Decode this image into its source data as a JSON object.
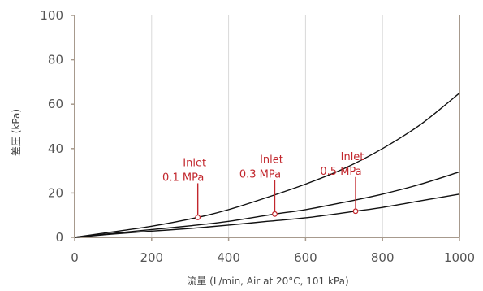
{
  "chart_data": {
    "type": "line",
    "title": "",
    "xlabel": "流量 (L/min, Air at 20°C, 101 kPa)",
    "ylabel": "差圧 (kPa)",
    "xlim": [
      0,
      1000
    ],
    "ylim": [
      0,
      100
    ],
    "x_ticks": [
      "0",
      "200",
      "400",
      "600",
      "800",
      "1000"
    ],
    "y_ticks": [
      "0",
      "20",
      "40",
      "60",
      "80",
      "100"
    ],
    "grid": "vertical",
    "series": [
      {
        "x": [
          0,
          100,
          200,
          320,
          400,
          500,
          600,
          700,
          800,
          900,
          1000
        ],
        "y": [
          0,
          2.5,
          5.0,
          9.0,
          12.5,
          18.0,
          24.0,
          31.0,
          40.0,
          51.0,
          65.0
        ]
      },
      {
        "x": [
          0,
          100,
          200,
          300,
          400,
          520,
          600,
          700,
          800,
          900,
          1000
        ],
        "y": [
          0,
          1.8,
          3.5,
          5.2,
          7.2,
          10.5,
          12.5,
          15.8,
          19.5,
          24.0,
          29.5
        ]
      },
      {
        "x": [
          0,
          100,
          200,
          300,
          400,
          500,
          600,
          730,
          800,
          900,
          1000
        ],
        "y": [
          0,
          1.5,
          2.8,
          4.0,
          5.5,
          7.2,
          8.8,
          11.8,
          13.5,
          16.5,
          19.5
        ]
      }
    ],
    "annotations": [
      {
        "lines": [
          "Inlet",
          "0.1 MPa"
        ],
        "x": 320,
        "y": 9.0
      },
      {
        "lines": [
          "Inlet",
          "0.3 MPa"
        ],
        "x": 520,
        "y": 10.5
      },
      {
        "lines": [
          "Inlet",
          "0.5 MPa"
        ],
        "x": 730,
        "y": 11.8
      }
    ],
    "colors": {
      "line": "#111111",
      "annotation": "#c2272d",
      "axis": "#a79a8d",
      "grid": "#d9d9d9"
    }
  }
}
